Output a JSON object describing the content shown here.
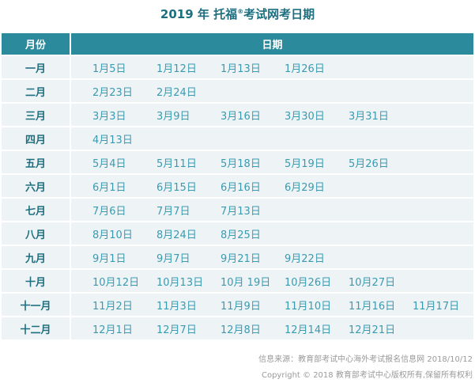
{
  "title": {
    "main": "2019 年 托福",
    "reg": "®",
    "rest": "考试网考日期"
  },
  "header": {
    "month": "月份",
    "dates": "日期"
  },
  "rows": [
    {
      "month": "一月",
      "dates": [
        "1月5日",
        "1月12日",
        "1月13日",
        "1月26日"
      ]
    },
    {
      "month": "二月",
      "dates": [
        "2月23日",
        "2月24日"
      ]
    },
    {
      "month": "三月",
      "dates": [
        "3月3日",
        "3月9日",
        "3月16日",
        "3月30日",
        "3月31日"
      ]
    },
    {
      "month": "四月",
      "dates": [
        "4月13日"
      ]
    },
    {
      "month": "五月",
      "dates": [
        "5月4日",
        "5月11日",
        "5月18日",
        "5月19日",
        "5月26日"
      ]
    },
    {
      "month": "六月",
      "dates": [
        "6月1日",
        "6月15日",
        "6月16日",
        "6月29日"
      ]
    },
    {
      "month": "七月",
      "dates": [
        "7月6日",
        "7月7日",
        "7月13日"
      ]
    },
    {
      "month": "八月",
      "dates": [
        "8月10日",
        "8月24日",
        "8月25日"
      ]
    },
    {
      "month": "九月",
      "dates": [
        "9月1日",
        "9月7日",
        "9月21日",
        "9月22日"
      ]
    },
    {
      "month": "十月",
      "dates": [
        "10月12日",
        "10月13日",
        "10月 19日",
        "10月26日",
        "10月27日"
      ]
    },
    {
      "month": "十一月",
      "dates": [
        "11月2日",
        "11月3日",
        "11月9日",
        "11月10日",
        "11月16日",
        "11月17日"
      ]
    },
    {
      "month": "十二月",
      "dates": [
        "12月1日",
        "12月7日",
        "12月8日",
        "12月14日",
        "12月21日"
      ]
    }
  ],
  "footer": {
    "source": "信息来源：教育部考试中心海外考试报名信息网 2018/10/12",
    "copyright": "Copyright © 2018 教育部考试中心版权所有,保留所有权利"
  },
  "colors": {
    "header_bg": "#2b8a9b",
    "row_bg": "#eef3f6",
    "title": "#1d6f7f",
    "date_text": "#3a9bb0"
  }
}
